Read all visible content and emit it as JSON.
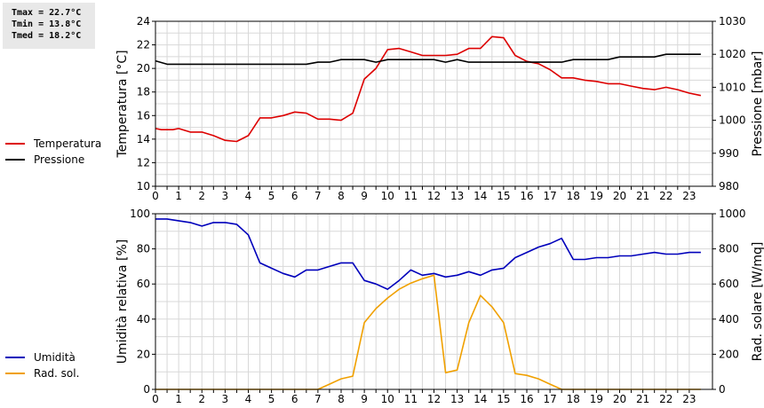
{
  "stats": {
    "tmax": "Tmax = 22.7°C",
    "tmin": "Tmin = 13.8°C",
    "tmed": "Tmed = 18.2°C"
  },
  "chart_data": [
    {
      "type": "line",
      "xlim": [
        0,
        24
      ],
      "xticks": [
        "0",
        "0.5",
        "1",
        "1.5",
        "2",
        "2.5",
        "3",
        "3.5",
        "4",
        "4.5",
        "5",
        "5.5",
        "6",
        "6.5",
        "7",
        "7.5",
        "8",
        "8.5",
        "9",
        "9.5",
        "10",
        "10.5",
        "11",
        "11.5",
        "12",
        "12.5",
        "13",
        "13.5",
        "14",
        "14.5",
        "15",
        "15.5",
        "16",
        "16.5",
        "17",
        "17.5",
        "18",
        "18.5",
        "19",
        "19.5",
        "20",
        "20.5",
        "21",
        "21.5",
        "22",
        "22.5",
        "23"
      ],
      "ylabel": "Temperatura [°C]",
      "ylim": [
        10,
        24
      ],
      "yticks": [
        "10",
        "12",
        "14",
        "16",
        "18",
        "20",
        "22",
        "24"
      ],
      "y2label": "Pressione [mbar]",
      "y2lim": [
        980,
        1030
      ],
      "y2ticks": [
        "980",
        "990",
        "1000",
        "1010",
        "1020",
        "1030"
      ],
      "grid": true,
      "series": [
        {
          "name": "Temperatura",
          "axis": "left",
          "color": "#dd0000",
          "x": [
            0,
            0.25,
            0.5,
            0.75,
            1,
            1.5,
            2,
            2.5,
            3,
            3.5,
            4,
            4.5,
            5,
            5.5,
            6,
            6.5,
            7,
            7.5,
            8,
            8.5,
            9,
            9.5,
            10,
            10.5,
            11,
            11.5,
            12,
            12.5,
            13,
            13.5,
            14,
            14.5,
            15,
            15.5,
            16,
            16.5,
            17,
            17.5,
            18,
            18.5,
            19,
            19.5,
            20,
            20.5,
            21,
            21.5,
            22,
            22.5,
            23,
            23.5
          ],
          "values": [
            14.9,
            14.8,
            14.8,
            14.8,
            14.9,
            14.6,
            14.6,
            14.3,
            13.9,
            13.8,
            14.3,
            15.8,
            15.8,
            16.0,
            16.3,
            16.2,
            15.7,
            15.7,
            15.6,
            16.2,
            19.1,
            20.0,
            21.6,
            21.7,
            21.4,
            21.1,
            21.1,
            21.1,
            21.2,
            21.7,
            21.7,
            22.7,
            22.6,
            21.1,
            20.6,
            20.4,
            19.9,
            19.2,
            19.2,
            19.0,
            18.9,
            18.7,
            18.7,
            18.5,
            18.3,
            18.2,
            18.4,
            18.2,
            17.9,
            17.7
          ]
        },
        {
          "name": "Pressione",
          "axis": "right",
          "color": "#000000",
          "x": [
            0,
            0.5,
            1,
            6.5,
            7,
            7.5,
            8,
            9,
            9.5,
            10,
            11,
            12,
            12.5,
            13,
            13.5,
            14,
            15,
            17.5,
            18,
            19.5,
            20,
            21.5,
            22,
            23.5
          ],
          "values": [
            1018,
            1017,
            1017,
            1017,
            1017.6,
            1017.6,
            1018.4,
            1018.4,
            1017.6,
            1018.4,
            1018.4,
            1018.4,
            1017.6,
            1018.4,
            1017.6,
            1017.6,
            1017.6,
            1017.6,
            1018.4,
            1018.4,
            1019.2,
            1019.2,
            1020,
            1020
          ]
        }
      ],
      "legend": [
        {
          "label": "Temperatura",
          "color": "#dd0000"
        },
        {
          "label": "Pressione",
          "color": "#000000"
        }
      ]
    },
    {
      "type": "line",
      "xlim": [
        0,
        24
      ],
      "xticks": [
        "0",
        "0.5",
        "1",
        "1.5",
        "2",
        "2.5",
        "3",
        "3.5",
        "4",
        "4.5",
        "5",
        "5.5",
        "6",
        "6.5",
        "7",
        "7.5",
        "8",
        "8.5",
        "9",
        "9.5",
        "10",
        "10.5",
        "11",
        "11.5",
        "12",
        "12.5",
        "13",
        "13.5",
        "14",
        "14.5",
        "15",
        "15.5",
        "16",
        "16.5",
        "17",
        "17.5",
        "18",
        "18.5",
        "19",
        "19.5",
        "20",
        "20.5",
        "21",
        "21.5",
        "22",
        "22.5",
        "23"
      ],
      "ylabel": "Umidità relativa [%]",
      "ylim": [
        0,
        100
      ],
      "yticks": [
        "0",
        "20",
        "40",
        "60",
        "80",
        "100"
      ],
      "y2label": "Rad. solare [W/mq]",
      "y2lim": [
        0,
        1000
      ],
      "y2ticks": [
        "0",
        "200",
        "400",
        "600",
        "800",
        "1000"
      ],
      "grid": true,
      "series": [
        {
          "name": "Umidità",
          "axis": "left",
          "color": "#0000bb",
          "x": [
            0,
            0.5,
            1,
            1.5,
            2,
            2.5,
            3,
            3.5,
            4,
            4.5,
            5,
            5.5,
            6,
            6.5,
            7,
            7.5,
            8,
            8.5,
            9,
            9.5,
            10,
            10.5,
            11,
            11.5,
            12,
            12.5,
            13,
            13.5,
            14,
            14.5,
            15,
            15.5,
            16,
            16.5,
            17,
            17.5,
            18,
            18.5,
            19,
            19.5,
            20,
            20.5,
            21,
            21.5,
            22,
            22.5,
            23,
            23.5
          ],
          "values": [
            97,
            97,
            96,
            95,
            93,
            95,
            95,
            94,
            88,
            72,
            69,
            66,
            64,
            68,
            68,
            70,
            72,
            72,
            62,
            60,
            57,
            62,
            68,
            65,
            66,
            64,
            65,
            67,
            65,
            68,
            69,
            75,
            78,
            81,
            83,
            86,
            74,
            74,
            75,
            75,
            76,
            76,
            77,
            78,
            77,
            77,
            78,
            78
          ]
        },
        {
          "name": "Rad. sol.",
          "axis": "right",
          "color": "#f0a000",
          "x": [
            0,
            7,
            7.5,
            8,
            8.5,
            9,
            9.5,
            10,
            10.5,
            11,
            11.5,
            12,
            12.5,
            13,
            13.5,
            14,
            14.5,
            15,
            15.5,
            16,
            16.5,
            17,
            17.5,
            18,
            23.5
          ],
          "values": [
            0,
            0,
            30,
            60,
            75,
            380,
            460,
            520,
            570,
            605,
            630,
            650,
            95,
            110,
            380,
            535,
            470,
            380,
            90,
            80,
            60,
            30,
            0,
            0,
            0
          ]
        }
      ],
      "legend": [
        {
          "label": "Umidità",
          "color": "#0000bb"
        },
        {
          "label": "Rad. sol.",
          "color": "#f0a000"
        }
      ]
    }
  ]
}
